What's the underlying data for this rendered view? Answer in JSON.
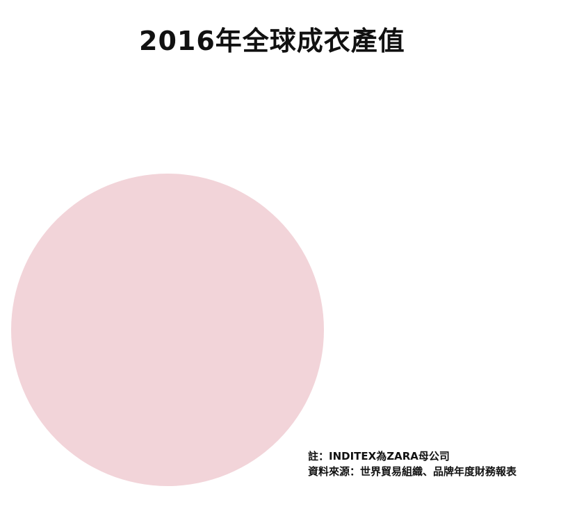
{
  "title": "2016年全球成衣產值",
  "chart_data": {
    "type": "pie",
    "title": "2016年全球成衣產值",
    "slices": [
      {
        "label": "",
        "value": 100,
        "color": "#f2d4d9"
      }
    ],
    "legend": "none",
    "grid": false
  },
  "notes": {
    "note": "註：INDITEX為ZARA母公司",
    "source": "資料來源：世界貿易組織、品牌年度財務報表"
  }
}
